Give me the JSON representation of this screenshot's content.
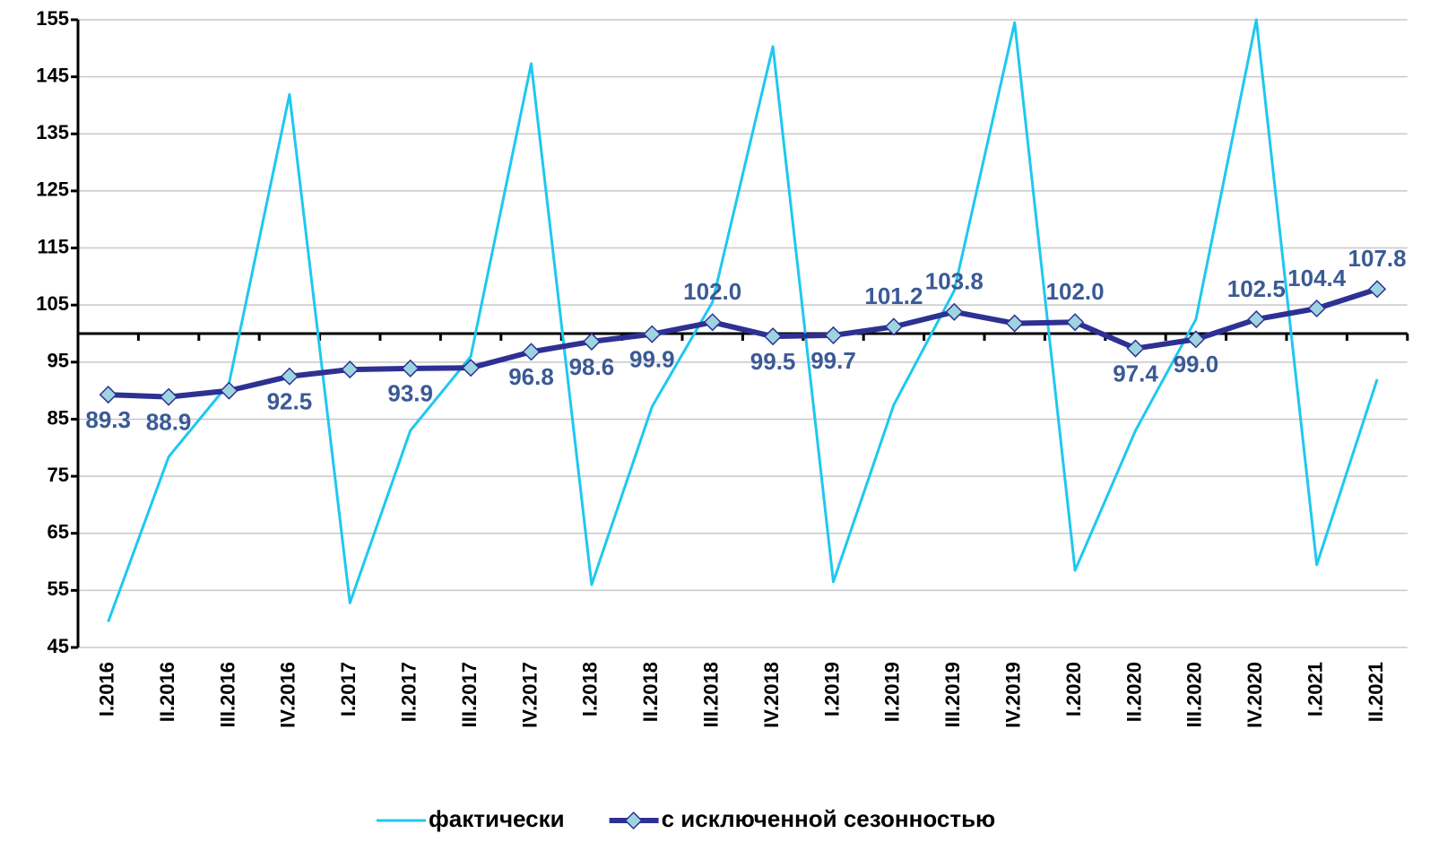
{
  "chart_data": {
    "type": "line",
    "categories": [
      "I.2016",
      "II.2016",
      "III.2016",
      "IV.2016",
      "I.2017",
      "II.2017",
      "III.2017",
      "IV.2017",
      "I.2018",
      "II.2018",
      "III.2018",
      "IV.2018",
      "I.2019",
      "II.2019",
      "III.2019",
      "IV.2019",
      "I.2020",
      "II.2020",
      "III.2020",
      "IV.2020",
      "I.2021",
      "II.2021"
    ],
    "series": [
      {
        "name": "фактически",
        "color": "#1ec8f0",
        "values": [
          49.5,
          78.4,
          91.3,
          141.9,
          52.8,
          83,
          96,
          147.3,
          56,
          87.2,
          105.5,
          150.3,
          56.5,
          87.5,
          107.5,
          154.5,
          58.5,
          83,
          102.5,
          155,
          59.5,
          92
        ]
      },
      {
        "name": "с исключенной сезонностью",
        "color": "#2e3192",
        "marker": "diamond",
        "marker_color": "#9ed4df",
        "values": [
          89.3,
          88.9,
          90.0,
          92.5,
          93.7,
          93.9,
          94.0,
          96.8,
          98.6,
          99.9,
          102.0,
          99.5,
          99.7,
          101.2,
          103.8,
          101.8,
          102.0,
          97.4,
          99.0,
          102.5,
          104.4,
          107.8
        ],
        "value_labels": [
          "89.3",
          "88.9",
          null,
          "92.5",
          null,
          "93.9",
          null,
          "96.8",
          "98.6",
          "99.9",
          "102.0",
          "99.5",
          "99.7",
          "101.2",
          "103.8",
          null,
          "102.0",
          "97.4",
          "99.0",
          "102.5",
          "104.4",
          "107.8"
        ]
      }
    ],
    "ylim": [
      45,
      155
    ],
    "yticks": [
      45,
      55,
      65,
      75,
      85,
      95,
      105,
      115,
      125,
      135,
      145,
      155
    ],
    "grid": true,
    "xaxis_crossing": 100,
    "legend": "bottom"
  }
}
